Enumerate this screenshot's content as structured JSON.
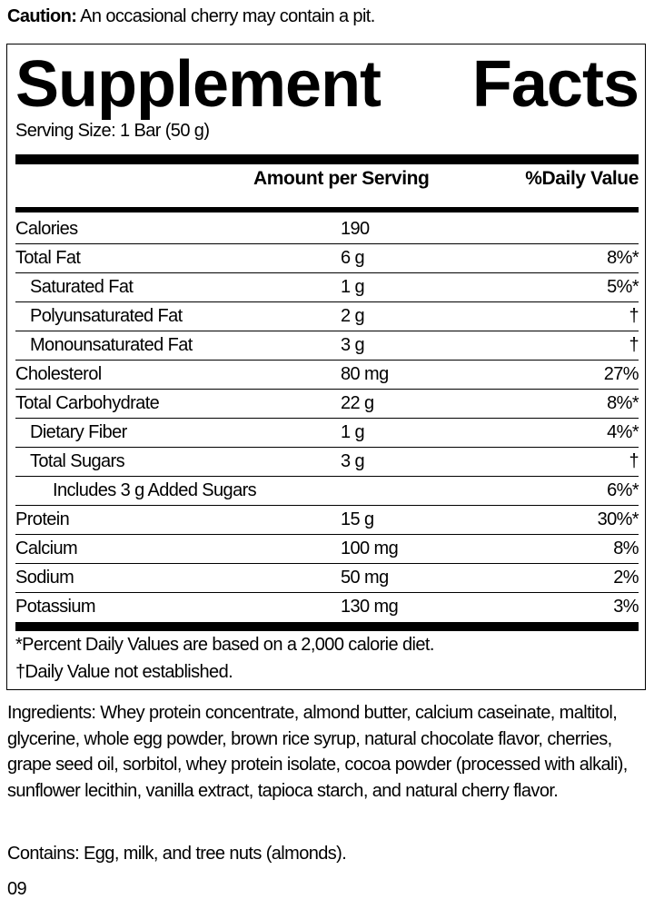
{
  "caution": {
    "label": "Caution:",
    "text": " An occasional cherry may contain a pit."
  },
  "panel": {
    "title_word1": "Supplement",
    "title_word2": "Facts",
    "serving_size": "Serving Size: 1 Bar (50 g)",
    "header": {
      "amount": "Amount per Serving",
      "dv": "%Daily Value"
    },
    "rows": [
      {
        "name": "Calories",
        "amount": "190",
        "dv": ""
      },
      {
        "name": "Total Fat",
        "amount": "6 g",
        "dv": "8%*"
      },
      {
        "name": "Saturated Fat",
        "amount": "1 g",
        "dv": "5%*"
      },
      {
        "name": "Polyunsaturated Fat",
        "amount": "2 g",
        "dv": "†"
      },
      {
        "name": "Monounsaturated Fat",
        "amount": "3 g",
        "dv": "†"
      },
      {
        "name": "Cholesterol",
        "amount": "80 mg",
        "dv": "27%"
      },
      {
        "name": "Total Carbohydrate",
        "amount": "22 g",
        "dv": "8%*"
      },
      {
        "name": "Dietary Fiber",
        "amount": "1 g",
        "dv": "4%*"
      },
      {
        "name": "Total Sugars",
        "amount": "3 g",
        "dv": "†"
      },
      {
        "name": "Includes 3 g Added Sugars",
        "amount": "",
        "dv": "6%*"
      },
      {
        "name": "Protein",
        "amount": "15 g",
        "dv": "30%*"
      },
      {
        "name": "Calcium",
        "amount": "100 mg",
        "dv": "8%"
      },
      {
        "name": "Sodium",
        "amount": "50 mg",
        "dv": "2%"
      },
      {
        "name": "Potassium",
        "amount": "130 mg",
        "dv": "3%"
      }
    ],
    "footnote1": "*Percent Daily Values are based on a 2,000 calorie diet.",
    "footnote2": "†Daily Value not established."
  },
  "ingredients": "Ingredients: Whey protein concentrate, almond butter, calcium caseinate, maltitol, glycerine, whole egg powder, brown rice syrup, natural chocolate flavor, cherries, grape seed oil, sorbitol, whey protein isolate, cocoa powder (processed with alkali), sunflower lecithin, vanilla extract, tapioca starch, and natural cherry flavor.",
  "contains": "Contains: Egg, milk, and tree nuts (almonds).",
  "code": "09"
}
